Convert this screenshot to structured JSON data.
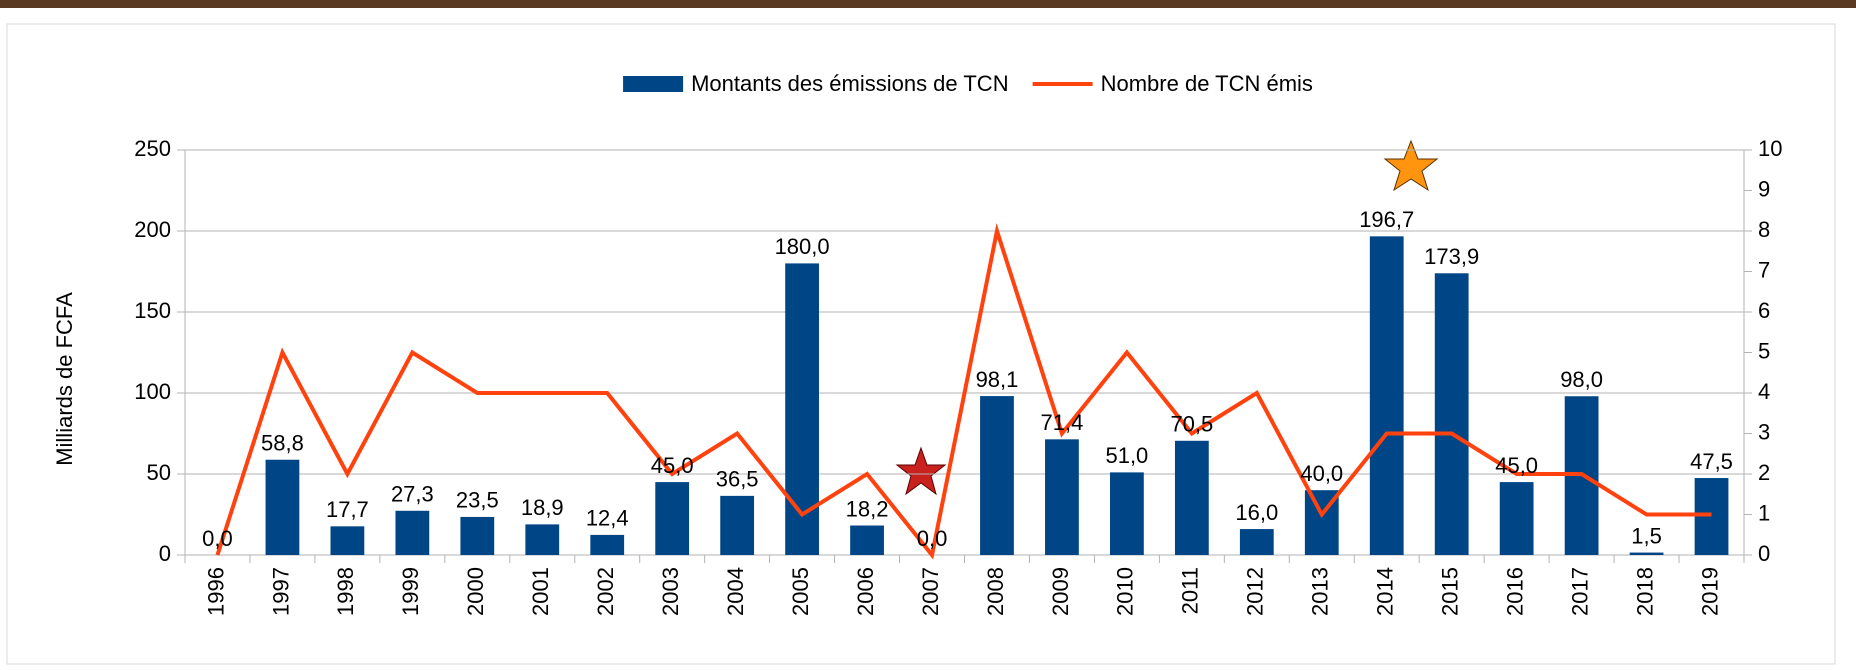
{
  "chart_data": {
    "type": "bar",
    "categories": [
      "1996",
      "1997",
      "1998",
      "1999",
      "2000",
      "2001",
      "2002",
      "2003",
      "2004",
      "2005",
      "2006",
      "2007",
      "2008",
      "2009",
      "2010",
      "2011",
      "2012",
      "2013",
      "2014",
      "2015",
      "2016",
      "2017",
      "2018",
      "2019"
    ],
    "y_axis_label": "Milliards de FCFA",
    "series": [
      {
        "name": "Montants des émissions de TCN",
        "type": "bar",
        "color": "#004586",
        "values": [
          0.0,
          58.8,
          17.7,
          27.3,
          23.5,
          18.9,
          12.4,
          45.0,
          36.5,
          180.0,
          18.2,
          0.0,
          98.1,
          71.4,
          51.0,
          70.5,
          16.0,
          40.0,
          196.7,
          173.9,
          45.0,
          98.0,
          1.5,
          47.5
        ],
        "value_labels": [
          "0,0",
          "58,8",
          "17,7",
          "27,3",
          "23,5",
          "18,9",
          "12,4",
          "45,0",
          "36,5",
          "180,0",
          "18,2",
          "0,0",
          "98,1",
          "71,4",
          "51,0",
          "70,5",
          "16,0",
          "40,0",
          "196,7",
          "173,9",
          "45,0",
          "98,0",
          "1,5",
          "47,5"
        ]
      },
      {
        "name": "Nombre de TCN émis",
        "type": "line",
        "color": "#ff420e",
        "axis": "y2",
        "values": [
          0,
          5,
          2,
          5,
          4,
          4,
          4,
          2,
          3,
          1,
          2,
          0,
          8,
          3,
          5,
          3,
          4,
          1,
          3,
          3,
          2,
          2,
          1,
          1
        ]
      }
    ],
    "ylim": [
      0,
      250
    ],
    "yticks": [
      0,
      50,
      100,
      150,
      200,
      250
    ],
    "y2lim": [
      0,
      10
    ],
    "y2ticks": [
      0,
      1,
      2,
      3,
      4,
      5,
      6,
      7,
      8,
      9,
      10
    ],
    "grid": true,
    "legend": "top"
  }
}
